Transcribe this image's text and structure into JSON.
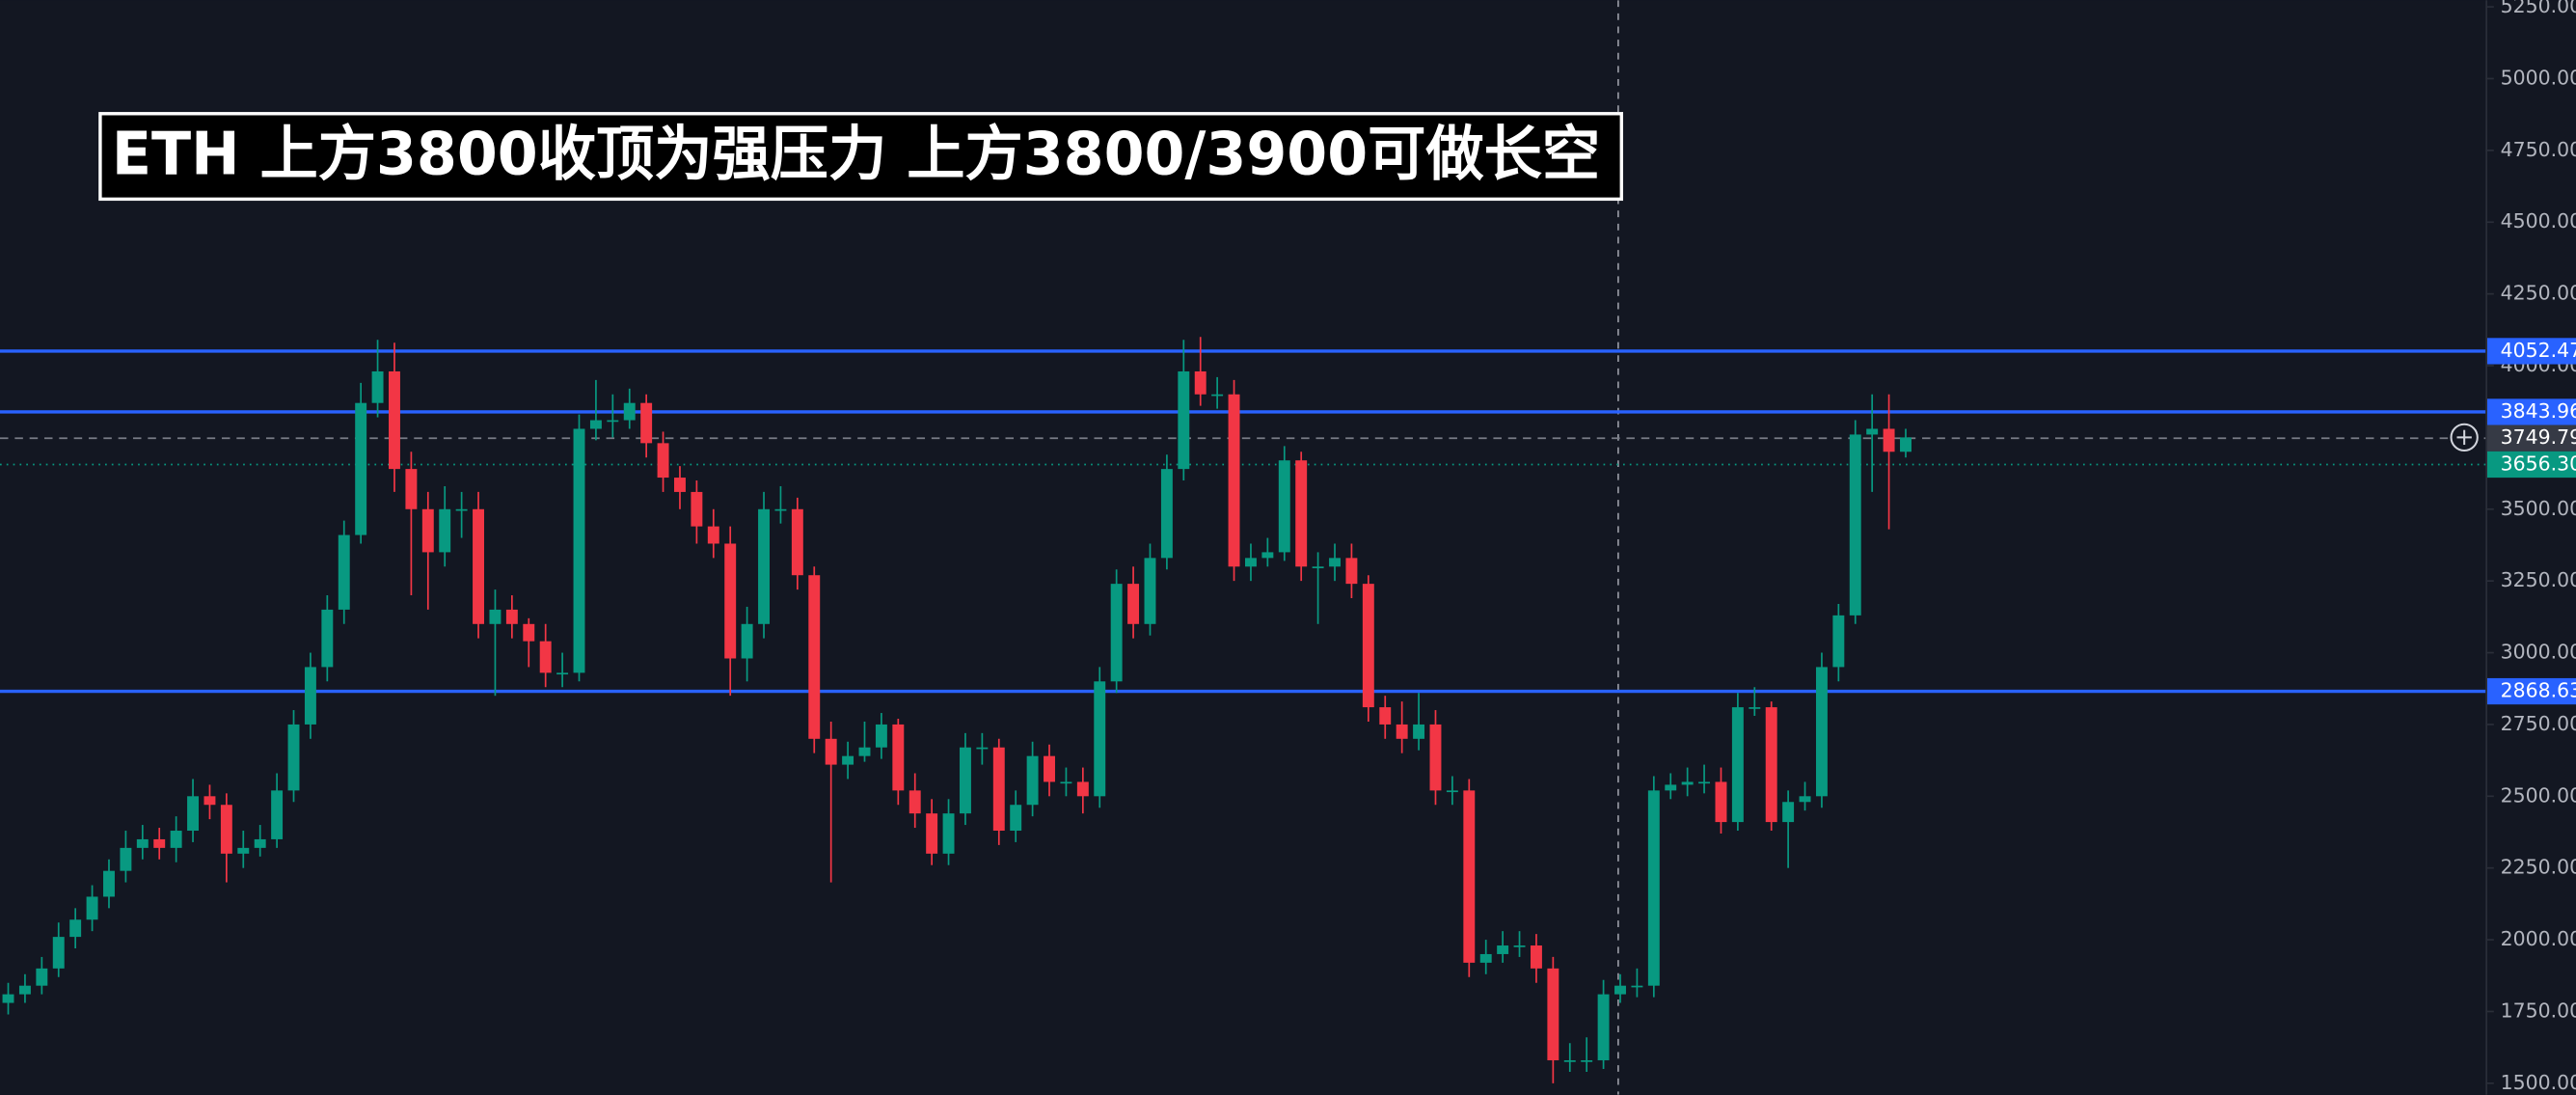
{
  "chart_data": {
    "type": "candlestick",
    "title": "ETH 上方3800收顶为强压力  上方3800/3900可做长空",
    "up_color": "#089981",
    "down_color": "#f23645",
    "ylim": [
      1460,
      5273
    ],
    "yticks": [
      {
        "value": 1500,
        "label": "1500.00"
      },
      {
        "value": 1750,
        "label": "1750.00"
      },
      {
        "value": 2000,
        "label": "2000.00"
      },
      {
        "value": 2250,
        "label": "2250.00"
      },
      {
        "value": 2500,
        "label": "2500.00"
      },
      {
        "value": 2750,
        "label": "2750.00"
      },
      {
        "value": 3000,
        "label": "3000.00"
      },
      {
        "value": 3250,
        "label": "3250.00"
      },
      {
        "value": 3500,
        "label": "3500.00"
      },
      {
        "value": 3750,
        "label": "3750.00"
      },
      {
        "value": 4000,
        "label": "4000.00"
      },
      {
        "value": 4250,
        "label": "4250.00"
      },
      {
        "value": 4500,
        "label": "4500.00"
      },
      {
        "value": 4750,
        "label": "4750.00"
      },
      {
        "value": 5000,
        "label": "5000.00"
      },
      {
        "value": 5250,
        "label": "5250.00"
      }
    ],
    "hlines": [
      {
        "price": 4052.47,
        "color": "#2962ff",
        "style": "solid"
      },
      {
        "price": 3843.96,
        "color": "#2962ff",
        "style": "solid"
      },
      {
        "price": 2868.63,
        "color": "#2962ff",
        "style": "solid"
      },
      {
        "price": 3749.79,
        "color": "#363a45",
        "style": "dashed"
      },
      {
        "price": {
          "value": 3656.3,
          "label": "3656.30"
        },
        "color": "#089981",
        "style": "dotted"
      }
    ],
    "ohlc": [
      [
        1780,
        1850,
        1740,
        1810
      ],
      [
        1810,
        1880,
        1780,
        1840
      ],
      [
        1840,
        1940,
        1810,
        1900
      ],
      [
        1900,
        2060,
        1870,
        2010
      ],
      [
        2010,
        2110,
        1970,
        2070
      ],
      [
        2070,
        2190,
        2030,
        2150
      ],
      [
        2150,
        2280,
        2110,
        2240
      ],
      [
        2240,
        2380,
        2200,
        2320
      ],
      [
        2320,
        2400,
        2280,
        2350
      ],
      [
        2350,
        2390,
        2280,
        2320
      ],
      [
        2320,
        2430,
        2270,
        2380
      ],
      [
        2380,
        2560,
        2340,
        2500
      ],
      [
        2500,
        2540,
        2420,
        2470
      ],
      [
        2470,
        2510,
        2200,
        2300
      ],
      [
        2300,
        2380,
        2250,
        2320
      ],
      [
        2320,
        2400,
        2290,
        2350
      ],
      [
        2350,
        2580,
        2320,
        2520
      ],
      [
        2520,
        2800,
        2480,
        2750
      ],
      [
        2750,
        3000,
        2700,
        2950
      ],
      [
        2950,
        3200,
        2900,
        3150
      ],
      [
        3150,
        3460,
        3100,
        3410
      ],
      [
        3410,
        3940,
        3380,
        3870
      ],
      [
        3870,
        4090,
        3820,
        3980
      ],
      [
        3980,
        4080,
        3560,
        3640
      ],
      [
        3640,
        3700,
        3200,
        3500
      ],
      [
        3500,
        3560,
        3150,
        3350
      ],
      [
        3350,
        3580,
        3300,
        3500
      ],
      [
        3500,
        3560,
        3400,
        3500
      ],
      [
        3500,
        3560,
        3050,
        3100
      ],
      [
        3100,
        3220,
        2850,
        3150
      ],
      [
        3150,
        3200,
        3050,
        3100
      ],
      [
        3100,
        3120,
        2950,
        3040
      ],
      [
        3040,
        3100,
        2880,
        2930
      ],
      [
        2930,
        3000,
        2880,
        2930
      ],
      [
        2930,
        3830,
        2900,
        3780
      ],
      [
        3780,
        3950,
        3740,
        3810
      ],
      [
        3810,
        3900,
        3750,
        3810
      ],
      [
        3810,
        3920,
        3780,
        3870
      ],
      [
        3870,
        3900,
        3680,
        3730
      ],
      [
        3730,
        3770,
        3560,
        3610
      ],
      [
        3610,
        3650,
        3500,
        3560
      ],
      [
        3560,
        3600,
        3380,
        3440
      ],
      [
        3440,
        3500,
        3330,
        3380
      ],
      [
        3380,
        3440,
        2850,
        2980
      ],
      [
        2980,
        3160,
        2900,
        3100
      ],
      [
        3100,
        3560,
        3050,
        3500
      ],
      [
        3500,
        3580,
        3450,
        3500
      ],
      [
        3500,
        3540,
        3220,
        3270
      ],
      [
        3270,
        3300,
        2650,
        2700
      ],
      [
        2700,
        2760,
        2200,
        2610
      ],
      [
        2610,
        2690,
        2560,
        2640
      ],
      [
        2640,
        2760,
        2620,
        2670
      ],
      [
        2670,
        2790,
        2630,
        2750
      ],
      [
        2750,
        2770,
        2470,
        2520
      ],
      [
        2520,
        2580,
        2390,
        2440
      ],
      [
        2440,
        2490,
        2260,
        2300
      ],
      [
        2300,
        2490,
        2260,
        2440
      ],
      [
        2440,
        2720,
        2400,
        2670
      ],
      [
        2670,
        2720,
        2610,
        2670
      ],
      [
        2670,
        2700,
        2330,
        2380
      ],
      [
        2380,
        2520,
        2340,
        2470
      ],
      [
        2470,
        2690,
        2430,
        2640
      ],
      [
        2640,
        2680,
        2500,
        2550
      ],
      [
        2550,
        2600,
        2500,
        2550
      ],
      [
        2550,
        2600,
        2440,
        2500
      ],
      [
        2500,
        2950,
        2460,
        2900
      ],
      [
        2900,
        3290,
        2860,
        3240
      ],
      [
        3240,
        3300,
        3050,
        3100
      ],
      [
        3100,
        3380,
        3060,
        3330
      ],
      [
        3330,
        3690,
        3290,
        3640
      ],
      [
        3640,
        4090,
        3600,
        3980
      ],
      [
        3980,
        4100,
        3860,
        3900
      ],
      [
        3900,
        3960,
        3850,
        3900
      ],
      [
        3900,
        3950,
        3250,
        3300
      ],
      [
        3300,
        3380,
        3250,
        3330
      ],
      [
        3330,
        3400,
        3300,
        3350
      ],
      [
        3350,
        3720,
        3320,
        3670
      ],
      [
        3670,
        3700,
        3250,
        3300
      ],
      [
        3300,
        3350,
        3100,
        3300
      ],
      [
        3300,
        3380,
        3250,
        3330
      ],
      [
        3330,
        3380,
        3190,
        3240
      ],
      [
        3240,
        3270,
        2760,
        2810
      ],
      [
        2810,
        2850,
        2700,
        2750
      ],
      [
        2750,
        2830,
        2650,
        2700
      ],
      [
        2700,
        2860,
        2660,
        2750
      ],
      [
        2750,
        2800,
        2470,
        2520
      ],
      [
        2520,
        2570,
        2470,
        2520
      ],
      [
        2520,
        2560,
        1870,
        1920
      ],
      [
        1920,
        2000,
        1880,
        1950
      ],
      [
        1950,
        2030,
        1920,
        1980
      ],
      [
        1980,
        2030,
        1940,
        1980
      ],
      [
        1980,
        2020,
        1850,
        1900
      ],
      [
        1900,
        1940,
        1500,
        1580
      ],
      [
        1580,
        1640,
        1540,
        1580
      ],
      [
        1580,
        1660,
        1540,
        1580
      ],
      [
        1580,
        1860,
        1550,
        1810
      ],
      [
        1810,
        1880,
        1780,
        1840
      ],
      [
        1840,
        1900,
        1800,
        1840
      ],
      [
        1840,
        2570,
        1800,
        2520
      ],
      [
        2520,
        2580,
        2490,
        2540
      ],
      [
        2540,
        2600,
        2500,
        2550
      ],
      [
        2550,
        2610,
        2510,
        2550
      ],
      [
        2550,
        2600,
        2370,
        2410
      ],
      [
        2410,
        2860,
        2380,
        2810
      ],
      [
        2810,
        2880,
        2780,
        2810
      ],
      [
        2810,
        2830,
        2380,
        2410
      ],
      [
        2410,
        2520,
        2250,
        2480
      ],
      [
        2480,
        2550,
        2450,
        2500
      ],
      [
        2500,
        3000,
        2460,
        2950
      ],
      [
        2950,
        3170,
        2900,
        3130
      ],
      [
        3130,
        3810,
        3100,
        3760
      ],
      [
        3760,
        3900,
        3560,
        3780
      ],
      [
        3780,
        3900,
        3430,
        3700
      ],
      [
        3700,
        3780,
        3680,
        3750
      ]
    ]
  }
}
